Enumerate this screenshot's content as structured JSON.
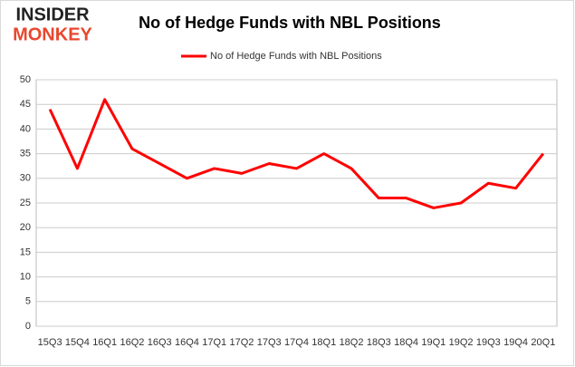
{
  "logo": {
    "line1": "INSIDER",
    "line2": "MONKEY"
  },
  "chart_data": {
    "type": "line",
    "title": "No of Hedge Funds with NBL Positions",
    "categories": [
      "15Q3",
      "15Q4",
      "16Q1",
      "16Q2",
      "16Q3",
      "16Q4",
      "17Q1",
      "17Q2",
      "17Q3",
      "17Q4",
      "18Q1",
      "18Q2",
      "18Q3",
      "18Q4",
      "19Q1",
      "19Q2",
      "19Q3",
      "19Q4",
      "20Q1"
    ],
    "series": [
      {
        "name": "No of Hedge Funds with NBL Positions",
        "color": "#ff0000",
        "values": [
          44,
          32,
          46,
          36,
          33,
          30,
          32,
          31,
          33,
          32,
          35,
          32,
          26,
          26,
          24,
          25,
          29,
          28,
          35
        ]
      }
    ],
    "ylim": [
      0,
      50
    ],
    "yticks": [
      0,
      5,
      10,
      15,
      20,
      25,
      30,
      35,
      40,
      45,
      50
    ],
    "grid": true,
    "legend": "top"
  }
}
